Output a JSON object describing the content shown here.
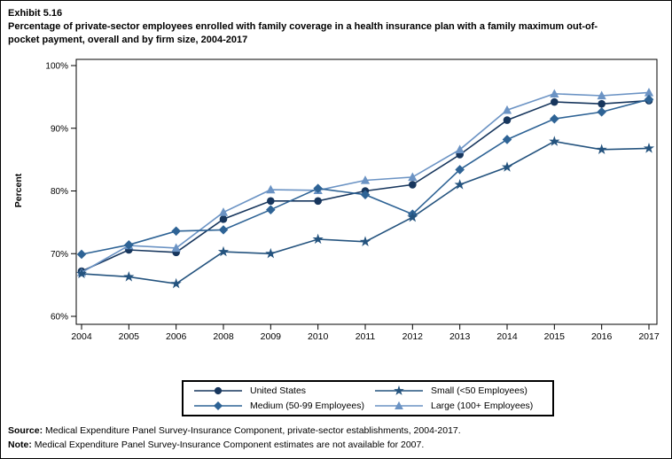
{
  "header": {
    "exhibit": "Exhibit 5.16",
    "title": "Percentage of private-sector employees enrolled with family coverage in a health insurance plan with a family maximum out-of-pocket payment, overall and by firm size, 2004-2017"
  },
  "chart_data": {
    "type": "line",
    "title": "Percentage of private-sector employees enrolled with family coverage in a health insurance plan with a family maximum out-of-pocket payment, overall and by firm size, 2004-2017",
    "xlabel": "",
    "ylabel": "Percent",
    "ylim": [
      60,
      100
    ],
    "yticks": [
      "60%",
      "70%",
      "80%",
      "90%",
      "100%"
    ],
    "grid": false,
    "legend_position": "bottom",
    "categories": [
      "2004",
      "2005",
      "2006",
      "2008",
      "2009",
      "2010",
      "2011",
      "2012",
      "2013",
      "2014",
      "2015",
      "2016",
      "2017"
    ],
    "series": [
      {
        "name": "United States",
        "marker": "circle",
        "color": "#17365d",
        "values": [
          67.2,
          70.6,
          70.2,
          75.5,
          78.4,
          78.4,
          80.0,
          81.0,
          85.8,
          91.3,
          94.2,
          93.9,
          94.4
        ]
      },
      {
        "name": "Medium (50-99 Employees)",
        "marker": "diamond",
        "color": "#2e6395",
        "values": [
          69.9,
          71.4,
          73.6,
          73.8,
          77.0,
          80.4,
          79.4,
          76.3,
          83.4,
          88.2,
          91.5,
          92.6,
          94.6
        ]
      },
      {
        "name": "Small (<50 Employees)",
        "marker": "star",
        "color": "#24537e",
        "values": [
          66.8,
          66.3,
          65.2,
          70.3,
          70.0,
          72.3,
          71.9,
          75.8,
          81.0,
          83.8,
          87.9,
          86.6,
          86.8
        ]
      },
      {
        "name": "Large (100+ Employees)",
        "marker": "triangle",
        "color": "#6b93c4",
        "values": [
          67.0,
          71.3,
          70.9,
          76.6,
          80.2,
          80.1,
          81.7,
          82.2,
          86.6,
          92.9,
          95.5,
          95.2,
          95.7
        ]
      }
    ],
    "draw_order": [
      0,
      3,
      1,
      2
    ]
  },
  "legend": {
    "cell_order": [
      0,
      2,
      1,
      3
    ]
  },
  "footer": {
    "source_label": "Source:",
    "source_text": "Medical Expenditure Panel Survey-Insurance Component, private-sector establishments, 2004-2017.",
    "note_label": "Note:",
    "note_text": "Medical Expenditure Panel Survey-Insurance Component estimates are not available for 2007."
  }
}
